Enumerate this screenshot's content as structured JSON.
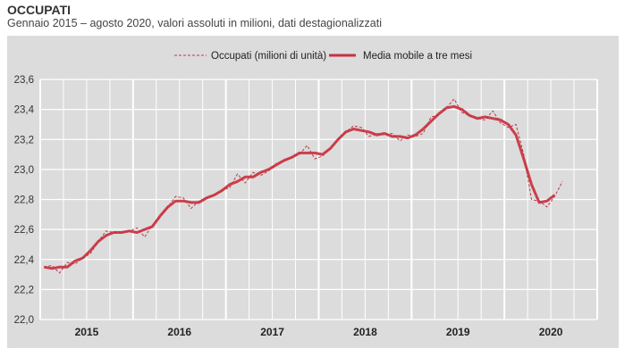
{
  "title": "OCCUPATI",
  "subtitle": "Gennaio 2015 – agosto 2020, valori assoluti in milioni, dati destagionalizzati",
  "chart_data": {
    "type": "line",
    "title": "OCCUPATI",
    "subtitle": "Gennaio 2015 – agosto 2020, valori assoluti in milioni, dati destagionalizzati",
    "x_start": "2015-01",
    "x_frequency": "monthly",
    "x_tick_labels": [
      "2015",
      "2016",
      "2017",
      "2018",
      "2019",
      "2020"
    ],
    "y_tick_labels": [
      "22,0",
      "22,2",
      "22,4",
      "22,6",
      "22,8",
      "23,0",
      "23,2",
      "23,4",
      "23,6"
    ],
    "ylim": [
      22.0,
      23.6
    ],
    "grid": true,
    "legend_position": "top",
    "background_color": "#dcdcdc",
    "series": [
      {
        "name": "Occupati (milioni di unità)",
        "style": "dashed",
        "color": "#b83a48",
        "start": "2015-01",
        "values": [
          22.35,
          22.36,
          22.31,
          22.38,
          22.37,
          22.41,
          22.44,
          22.52,
          22.59,
          22.58,
          22.58,
          22.59,
          22.61,
          22.55,
          22.63,
          22.69,
          22.75,
          22.82,
          22.81,
          22.74,
          22.79,
          22.81,
          22.83,
          22.86,
          22.88,
          22.97,
          22.91,
          22.98,
          22.96,
          22.99,
          23.04,
          23.06,
          23.08,
          23.1,
          23.16,
          23.07,
          23.09,
          23.14,
          23.2,
          23.25,
          23.29,
          23.28,
          23.22,
          23.24,
          23.23,
          23.24,
          23.19,
          23.23,
          23.22,
          23.24,
          23.35,
          23.36,
          23.41,
          23.47,
          23.38,
          23.36,
          23.34,
          23.33,
          23.39,
          23.31,
          23.28,
          23.3,
          23.1,
          22.8,
          22.79,
          22.75,
          22.82,
          22.92
        ]
      },
      {
        "name": "Media mobile a tre mesi",
        "style": "solid",
        "color": "#c8313e",
        "start": "2015-01",
        "values": [
          22.35,
          22.34,
          22.35,
          22.35,
          22.39,
          22.41,
          22.46,
          22.52,
          22.56,
          22.58,
          22.58,
          22.59,
          22.58,
          22.6,
          22.62,
          22.69,
          22.75,
          22.79,
          22.79,
          22.78,
          22.78,
          22.81,
          22.83,
          22.86,
          22.9,
          22.92,
          22.95,
          22.95,
          22.98,
          23.0,
          23.03,
          23.06,
          23.08,
          23.11,
          23.11,
          23.11,
          23.1,
          23.14,
          23.2,
          23.25,
          23.27,
          23.26,
          23.25,
          23.23,
          23.24,
          23.22,
          23.22,
          23.21,
          23.23,
          23.27,
          23.32,
          23.37,
          23.41,
          23.42,
          23.4,
          23.36,
          23.34,
          23.35,
          23.34,
          23.33,
          23.3,
          23.23,
          23.07,
          22.9,
          22.78,
          22.79,
          22.83
        ]
      }
    ]
  }
}
